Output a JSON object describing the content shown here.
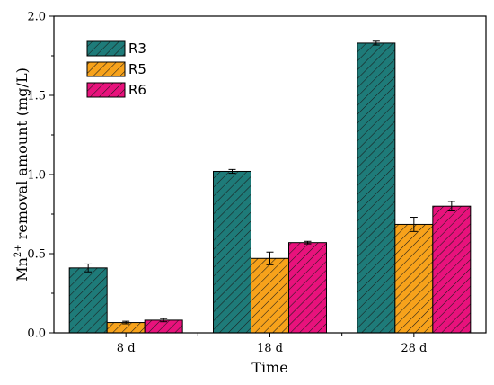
{
  "chart_data": {
    "type": "bar",
    "title": "",
    "xlabel": "Time",
    "ylabel_main": "Mn",
    "ylabel_sup": "2+",
    "ylabel_rest": " removal amount (mg/L)",
    "categories": [
      "8 d",
      "18 d",
      "28 d"
    ],
    "ylim": [
      0,
      2.0
    ],
    "yticks": [
      "0.0",
      "0.5",
      "1.0",
      "1.5",
      "2.0"
    ],
    "yticks_values": [
      0,
      0.5,
      1.0,
      1.5,
      2.0
    ],
    "legend_position": "top-left",
    "grid": false,
    "series": [
      {
        "name": "R3",
        "color": "#1e7b79",
        "values": [
          0.41,
          1.02,
          1.83
        ],
        "errors": [
          0.025,
          0.012,
          0.012
        ]
      },
      {
        "name": "R5",
        "color": "#f7a21b",
        "values": [
          0.065,
          0.47,
          0.685
        ],
        "errors": [
          0.008,
          0.04,
          0.045
        ]
      },
      {
        "name": "R6",
        "color": "#e8127c",
        "values": [
          0.08,
          0.57,
          0.8
        ],
        "errors": [
          0.01,
          0.008,
          0.03
        ]
      }
    ]
  }
}
